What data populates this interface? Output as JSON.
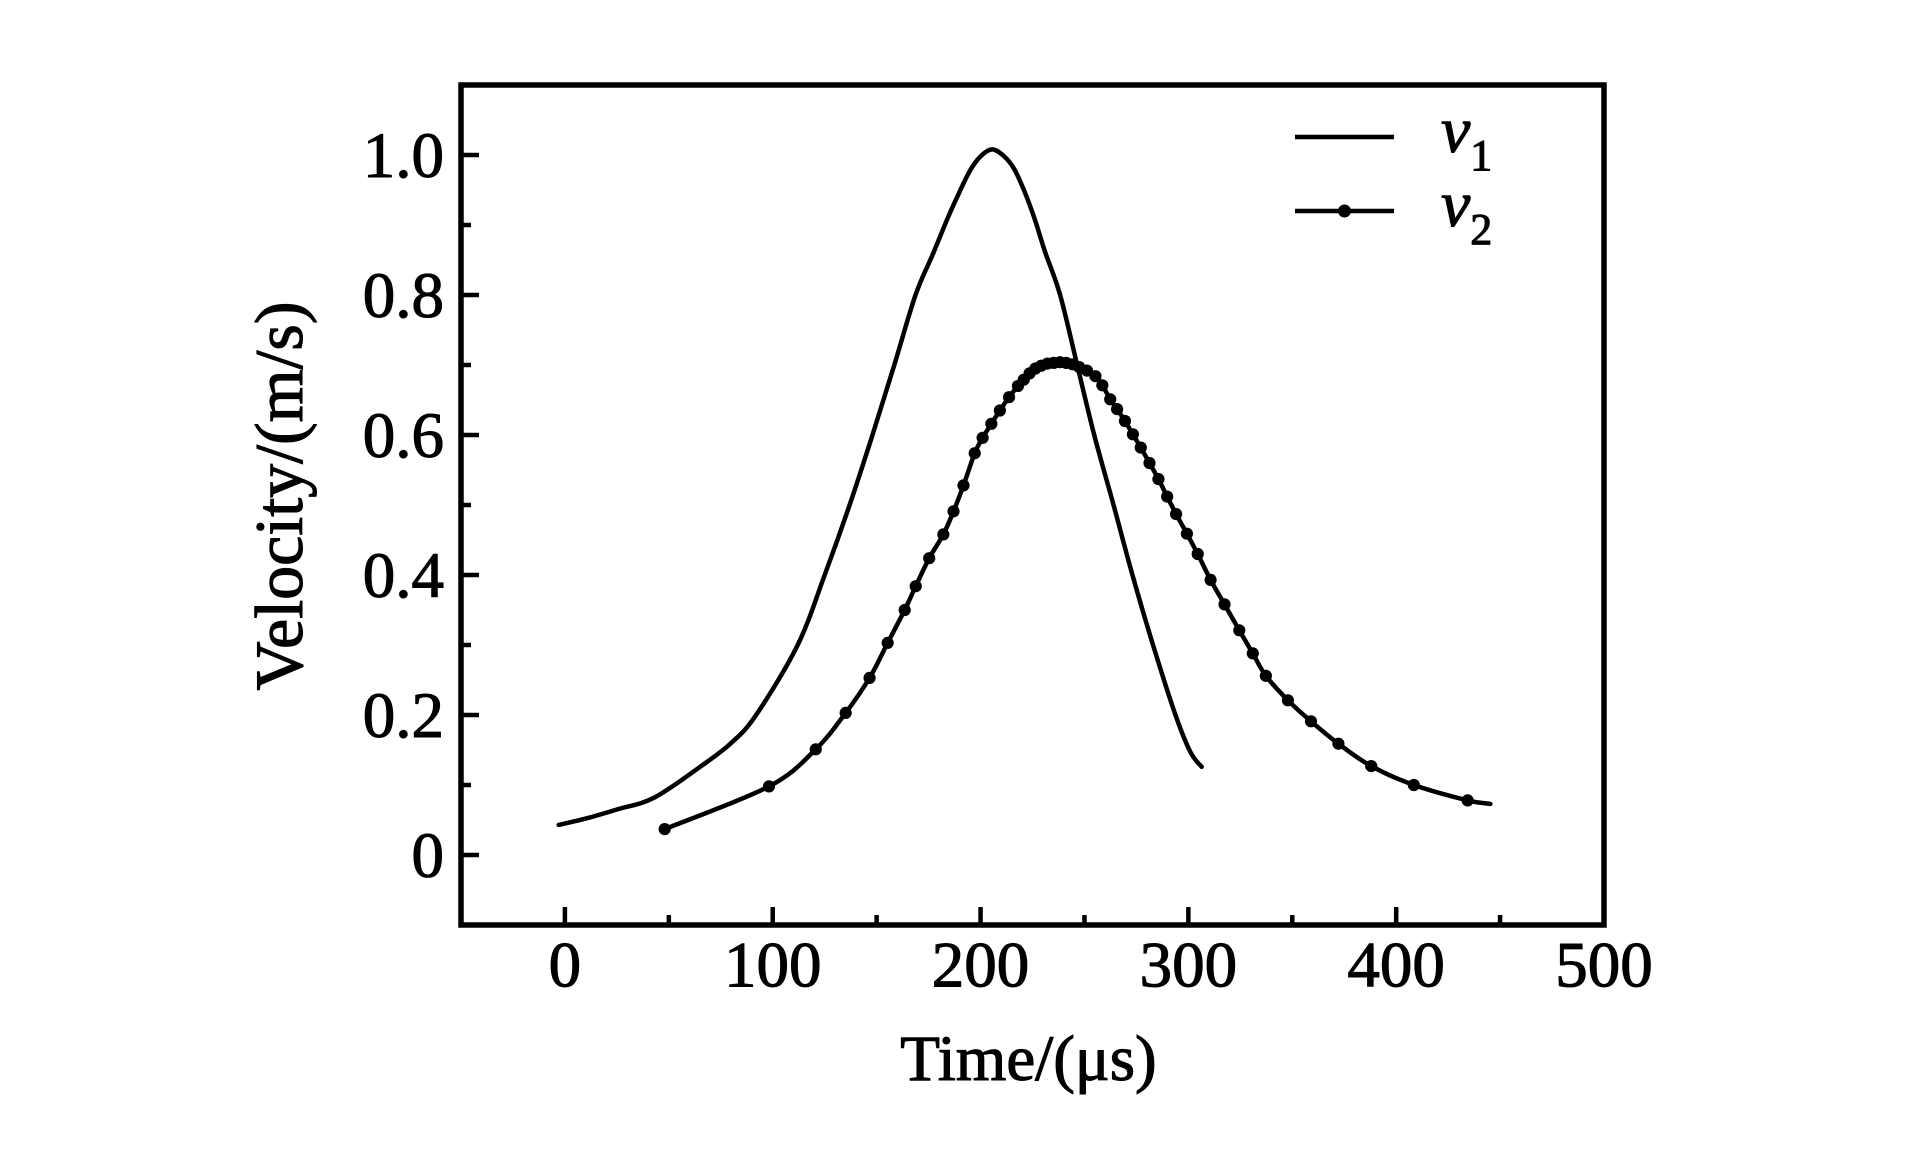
{
  "figure": {
    "kind": "scientific-xy-plot",
    "background_color": "#ffffff",
    "ink_color": "#000000"
  },
  "chart_data": {
    "type": "line",
    "title": "",
    "xlabel": "Time/(μs)",
    "ylabel": "Velocity/(m/s)",
    "xlim": [
      -50,
      500
    ],
    "ylim": [
      -0.1,
      1.1
    ],
    "grid": false,
    "frame": "box",
    "x_ticks": {
      "major": [
        0,
        100,
        200,
        300,
        400,
        500
      ],
      "labels": [
        "0",
        "100",
        "200",
        "300",
        "400",
        "500"
      ],
      "minor": [
        50,
        150,
        250,
        350,
        450
      ]
    },
    "y_ticks": {
      "major": [
        0,
        0.2,
        0.4,
        0.6,
        0.8,
        1.0
      ],
      "labels": [
        "0",
        "0.2",
        "0.4",
        "0.6",
        "0.8",
        "1.0"
      ],
      "minor": [
        0.1,
        0.3,
        0.5,
        0.7,
        0.9
      ]
    },
    "legend": {
      "position": "top-right-inside",
      "entries": [
        {
          "name": "v1",
          "label_base": "v",
          "label_sub": "1",
          "line": "solid",
          "marker": "none"
        },
        {
          "name": "v2",
          "label_base": "v",
          "label_sub": "2",
          "line": "solid",
          "marker": "filled-circle"
        }
      ]
    },
    "series": [
      {
        "name": "v1",
        "style": "smooth-line",
        "points": [
          [
            -3,
            0.043
          ],
          [
            10,
            0.052
          ],
          [
            25,
            0.065
          ],
          [
            43,
            0.082
          ],
          [
            66,
            0.128
          ],
          [
            80,
            0.16
          ],
          [
            92,
            0.2
          ],
          [
            112,
            0.3
          ],
          [
            125,
            0.4
          ],
          [
            137,
            0.5
          ],
          [
            148,
            0.6
          ],
          [
            158.5,
            0.7
          ],
          [
            168.7,
            0.8
          ],
          [
            177,
            0.858
          ],
          [
            184.5,
            0.912
          ],
          [
            190,
            0.948
          ],
          [
            195,
            0.978
          ],
          [
            200,
            0.998
          ],
          [
            205.5,
            1.008
          ],
          [
            211,
            0.999
          ],
          [
            216,
            0.981
          ],
          [
            221,
            0.949
          ],
          [
            226,
            0.909
          ],
          [
            231,
            0.862
          ],
          [
            238.3,
            0.8
          ],
          [
            246.5,
            0.7
          ],
          [
            254.7,
            0.6
          ],
          [
            264,
            0.5
          ],
          [
            273.1,
            0.4
          ],
          [
            283,
            0.3
          ],
          [
            293.8,
            0.2
          ],
          [
            301,
            0.147
          ],
          [
            306.4,
            0.126
          ]
        ]
      },
      {
        "name": "v2",
        "style": "smooth-line-with-markers",
        "points": [
          [
            48,
            0.037
          ],
          [
            98.2,
            0.098
          ],
          [
            120.7,
            0.151
          ],
          [
            135.1,
            0.203
          ],
          [
            146.6,
            0.253
          ],
          [
            155.3,
            0.303
          ],
          [
            163.5,
            0.35
          ],
          [
            168.8,
            0.384
          ],
          [
            175.3,
            0.424
          ],
          [
            182.1,
            0.458
          ],
          [
            187,
            0.491
          ],
          [
            191.8,
            0.528
          ],
          [
            197.2,
            0.574
          ],
          [
            201,
            0.596
          ],
          [
            205.2,
            0.616
          ],
          [
            209.3,
            0.635
          ],
          [
            213.7,
            0.654
          ],
          [
            218,
            0.67
          ],
          [
            220.8,
            0.679
          ],
          [
            223.6,
            0.688
          ],
          [
            226.4,
            0.695
          ],
          [
            229.2,
            0.699
          ],
          [
            232.2,
            0.702
          ],
          [
            235.2,
            0.703
          ],
          [
            238.2,
            0.704
          ],
          [
            241.2,
            0.703
          ],
          [
            244.3,
            0.701
          ],
          [
            247.5,
            0.697
          ],
          [
            251.2,
            0.692
          ],
          [
            255.3,
            0.684
          ],
          [
            258.6,
            0.671
          ],
          [
            262.4,
            0.651
          ],
          [
            265.7,
            0.637
          ],
          [
            269.5,
            0.62
          ],
          [
            273.3,
            0.601
          ],
          [
            277.1,
            0.582
          ],
          [
            281.3,
            0.56
          ],
          [
            285.6,
            0.537
          ],
          [
            289.8,
            0.512
          ],
          [
            294.1,
            0.487
          ],
          [
            299.3,
            0.459
          ],
          [
            304.5,
            0.43
          ],
          [
            310.7,
            0.393
          ],
          [
            317.4,
            0.358
          ],
          [
            324.5,
            0.321
          ],
          [
            331,
            0.288
          ],
          [
            337.3,
            0.256
          ],
          [
            347.9,
            0.221
          ],
          [
            359,
            0.191
          ],
          [
            372.2,
            0.159
          ],
          [
            388,
            0.127
          ],
          [
            408.5,
            0.1
          ],
          [
            434.4,
            0.078
          ]
        ],
        "line_tail_end": [
          445.3,
          0.073
        ]
      }
    ]
  }
}
